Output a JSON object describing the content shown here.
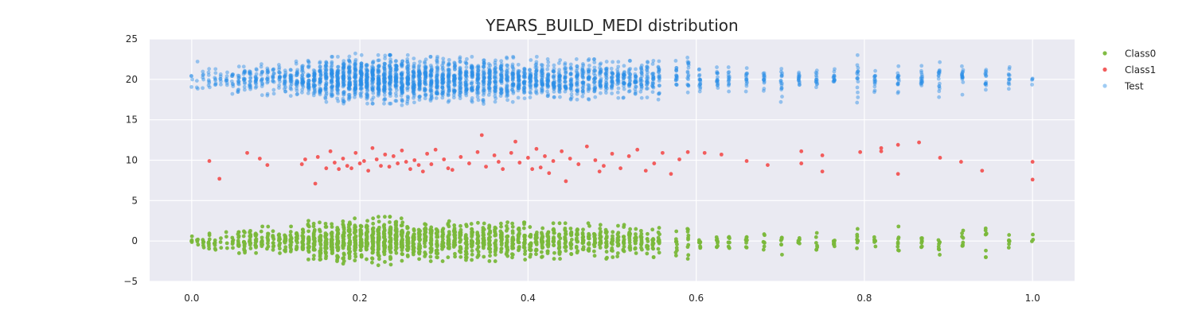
{
  "chart_data": {
    "type": "scatter",
    "title": "YEARS_BUILD_MEDI distribution",
    "xlabel": "",
    "ylabel": "",
    "xlim": [
      -0.05,
      1.05
    ],
    "ylim": [
      -5,
      25
    ],
    "x_ticks": [
      0.0,
      0.2,
      0.4,
      0.6,
      0.8,
      1.0
    ],
    "x_tick_labels": [
      "0.0",
      "0.2",
      "0.4",
      "0.6",
      "0.8",
      "1.0"
    ],
    "y_ticks": [
      -5,
      0,
      5,
      10,
      15,
      20,
      25
    ],
    "y_tick_labels": [
      "−5",
      "0",
      "5",
      "10",
      "15",
      "20",
      "25"
    ],
    "grid": true,
    "legend_position": "right",
    "background": "#eaeaf2",
    "series": [
      {
        "name": "Class0",
        "color": "#7ab83a",
        "opacity": 0.95,
        "center": 0,
        "x": [
          0.0,
          0.0069,
          0.0138,
          0.0208,
          0.0278,
          0.0347,
          0.0417,
          0.0486,
          0.0556,
          0.0625,
          0.0694,
          0.0764,
          0.0833,
          0.0903,
          0.0972,
          0.1042,
          0.1111,
          0.1181,
          0.125,
          0.1319,
          0.1389,
          0.1458,
          0.1528,
          0.1597,
          0.1667,
          0.1736,
          0.1806,
          0.1875,
          0.1944,
          0.2014,
          0.2083,
          0.2153,
          0.2222,
          0.2292,
          0.2361,
          0.2431,
          0.25,
          0.2569,
          0.2639,
          0.2708,
          0.2778,
          0.2847,
          0.2917,
          0.2986,
          0.3056,
          0.3125,
          0.3194,
          0.3264,
          0.3333,
          0.3403,
          0.3472,
          0.3542,
          0.3611,
          0.3681,
          0.375,
          0.3819,
          0.3889,
          0.3958,
          0.4028,
          0.4097,
          0.4167,
          0.4236,
          0.4306,
          0.4375,
          0.4444,
          0.4514,
          0.4583,
          0.4653,
          0.4722,
          0.4792,
          0.4861,
          0.4931,
          0.5,
          0.5069,
          0.5139,
          0.5208,
          0.5278,
          0.5347,
          0.5417,
          0.5486,
          0.5556,
          0.5764,
          0.5903,
          0.6042,
          0.625,
          0.6389,
          0.6597,
          0.6806,
          0.7014,
          0.7222,
          0.7431,
          0.7639,
          0.7917,
          0.8125,
          0.8403,
          0.8681,
          0.8889,
          0.9167,
          0.9444,
          0.9722,
          1.0
        ],
        "spread": [
          1.0,
          1.0,
          1.2,
          2.0,
          2.2,
          1.2,
          1.3,
          1.5,
          1.8,
          2.0,
          2.0,
          2.0,
          1.8,
          1.8,
          1.5,
          1.5,
          1.8,
          1.8,
          2.0,
          2.2,
          2.5,
          2.5,
          2.3,
          2.5,
          2.5,
          2.5,
          2.8,
          2.8,
          2.8,
          2.8,
          2.8,
          2.8,
          3.0,
          3.0,
          3.0,
          2.8,
          2.8,
          2.5,
          2.5,
          2.5,
          2.8,
          2.5,
          2.5,
          2.5,
          2.5,
          2.5,
          2.5,
          2.5,
          2.5,
          2.5,
          3.0,
          2.5,
          2.5,
          2.5,
          2.5,
          2.5,
          2.3,
          2.3,
          2.3,
          2.3,
          2.3,
          2.2,
          2.2,
          2.2,
          2.2,
          2.2,
          2.0,
          2.0,
          2.2,
          2.0,
          2.0,
          2.2,
          2.0,
          2.0,
          2.0,
          2.0,
          2.0,
          1.8,
          1.8,
          2.0,
          2.0,
          1.8,
          2.2,
          1.3,
          1.3,
          1.3,
          1.3,
          1.2,
          1.8,
          1.2,
          1.2,
          1.2,
          1.5,
          1.2,
          1.8,
          1.2,
          1.8,
          1.5,
          2.0,
          1.3,
          1.0
        ],
        "count": [
          5,
          4,
          6,
          8,
          7,
          3,
          4,
          6,
          12,
          14,
          14,
          14,
          12,
          10,
          12,
          12,
          14,
          16,
          18,
          20,
          24,
          26,
          26,
          30,
          32,
          34,
          36,
          38,
          38,
          40,
          40,
          40,
          40,
          38,
          36,
          36,
          34,
          32,
          30,
          30,
          28,
          28,
          26,
          26,
          26,
          26,
          24,
          24,
          24,
          24,
          24,
          24,
          22,
          22,
          22,
          22,
          20,
          20,
          20,
          20,
          20,
          18,
          18,
          18,
          18,
          18,
          16,
          16,
          16,
          16,
          16,
          16,
          14,
          14,
          14,
          14,
          14,
          14,
          12,
          12,
          12,
          10,
          10,
          8,
          8,
          8,
          8,
          7,
          8,
          7,
          7,
          7,
          8,
          7,
          8,
          8,
          8,
          8,
          8,
          6,
          3
        ]
      },
      {
        "name": "Class1",
        "color": "#f25c5c",
        "opacity": 1,
        "points": [
          [
            0.021,
            9.9
          ],
          [
            0.033,
            7.7
          ],
          [
            0.066,
            10.9
          ],
          [
            0.081,
            10.2
          ],
          [
            0.09,
            9.4
          ],
          [
            0.131,
            9.5
          ],
          [
            0.135,
            10.1
          ],
          [
            0.147,
            7.1
          ],
          [
            0.15,
            10.4
          ],
          [
            0.16,
            9.0
          ],
          [
            0.165,
            11.1
          ],
          [
            0.17,
            9.7
          ],
          [
            0.175,
            8.9
          ],
          [
            0.18,
            10.2
          ],
          [
            0.185,
            9.3
          ],
          [
            0.19,
            9.0
          ],
          [
            0.195,
            10.9
          ],
          [
            0.2,
            9.6
          ],
          [
            0.205,
            9.9
          ],
          [
            0.21,
            8.7
          ],
          [
            0.215,
            11.5
          ],
          [
            0.22,
            10.1
          ],
          [
            0.225,
            9.3
          ],
          [
            0.23,
            10.7
          ],
          [
            0.235,
            9.2
          ],
          [
            0.24,
            10.5
          ],
          [
            0.245,
            9.6
          ],
          [
            0.25,
            11.2
          ],
          [
            0.255,
            9.8
          ],
          [
            0.26,
            8.9
          ],
          [
            0.265,
            10.0
          ],
          [
            0.27,
            9.4
          ],
          [
            0.275,
            8.6
          ],
          [
            0.28,
            10.8
          ],
          [
            0.285,
            9.5
          ],
          [
            0.29,
            11.3
          ],
          [
            0.3,
            10.1
          ],
          [
            0.305,
            9.0
          ],
          [
            0.31,
            8.8
          ],
          [
            0.32,
            10.4
          ],
          [
            0.33,
            9.6
          ],
          [
            0.34,
            11.0
          ],
          [
            0.345,
            13.1
          ],
          [
            0.35,
            9.2
          ],
          [
            0.36,
            10.6
          ],
          [
            0.365,
            9.8
          ],
          [
            0.37,
            8.9
          ],
          [
            0.38,
            10.9
          ],
          [
            0.385,
            12.3
          ],
          [
            0.39,
            9.7
          ],
          [
            0.4,
            10.3
          ],
          [
            0.405,
            8.9
          ],
          [
            0.41,
            11.4
          ],
          [
            0.415,
            9.1
          ],
          [
            0.42,
            10.5
          ],
          [
            0.425,
            8.4
          ],
          [
            0.43,
            9.9
          ],
          [
            0.44,
            11.1
          ],
          [
            0.445,
            7.4
          ],
          [
            0.45,
            10.2
          ],
          [
            0.46,
            9.5
          ],
          [
            0.47,
            11.7
          ],
          [
            0.48,
            10.0
          ],
          [
            0.485,
            8.6
          ],
          [
            0.49,
            9.3
          ],
          [
            0.5,
            10.8
          ],
          [
            0.51,
            9.0
          ],
          [
            0.52,
            10.5
          ],
          [
            0.53,
            11.3
          ],
          [
            0.54,
            8.7
          ],
          [
            0.55,
            9.6
          ],
          [
            0.56,
            10.9
          ],
          [
            0.57,
            8.3
          ],
          [
            0.58,
            10.1
          ],
          [
            0.59,
            11.0
          ],
          [
            0.61,
            10.9
          ],
          [
            0.63,
            10.7
          ],
          [
            0.66,
            9.9
          ],
          [
            0.685,
            9.4
          ],
          [
            0.725,
            11.1
          ],
          [
            0.725,
            9.6
          ],
          [
            0.75,
            10.6
          ],
          [
            0.75,
            8.6
          ],
          [
            0.795,
            11.0
          ],
          [
            0.82,
            11.5
          ],
          [
            0.82,
            11.1
          ],
          [
            0.84,
            11.9
          ],
          [
            0.84,
            8.3
          ],
          [
            0.865,
            12.2
          ],
          [
            0.89,
            10.3
          ],
          [
            0.915,
            9.8
          ],
          [
            0.94,
            8.7
          ],
          [
            1.0,
            9.8
          ],
          [
            1.0,
            7.6
          ]
        ]
      },
      {
        "name": "Test",
        "color": "#2a8de6",
        "opacity": 0.45,
        "center": 20,
        "x": [
          0.0,
          0.0069,
          0.0138,
          0.0208,
          0.0278,
          0.0347,
          0.0417,
          0.0486,
          0.0556,
          0.0625,
          0.0694,
          0.0764,
          0.0833,
          0.0903,
          0.0972,
          0.1042,
          0.1111,
          0.1181,
          0.125,
          0.1319,
          0.1389,
          0.1458,
          0.1528,
          0.1597,
          0.1667,
          0.1736,
          0.1806,
          0.1875,
          0.1944,
          0.2014,
          0.2083,
          0.2153,
          0.2222,
          0.2292,
          0.2361,
          0.2431,
          0.25,
          0.2569,
          0.2639,
          0.2708,
          0.2778,
          0.2847,
          0.2917,
          0.2986,
          0.3056,
          0.3125,
          0.3194,
          0.3264,
          0.3333,
          0.3403,
          0.3472,
          0.3542,
          0.3611,
          0.3681,
          0.375,
          0.3819,
          0.3889,
          0.3958,
          0.4028,
          0.4097,
          0.4167,
          0.4236,
          0.4306,
          0.4375,
          0.4444,
          0.4514,
          0.4583,
          0.4653,
          0.4722,
          0.4792,
          0.4861,
          0.4931,
          0.5,
          0.5069,
          0.5139,
          0.5208,
          0.5278,
          0.5347,
          0.5417,
          0.5486,
          0.5556,
          0.5764,
          0.5903,
          0.6042,
          0.625,
          0.6389,
          0.6597,
          0.6806,
          0.7014,
          0.7222,
          0.7431,
          0.7639,
          0.7917,
          0.8125,
          0.8403,
          0.8681,
          0.8889,
          0.9167,
          0.9444,
          0.9722,
          1.0
        ],
        "spread": [
          1.0,
          2.2,
          1.5,
          1.5,
          1.8,
          1.5,
          1.5,
          1.8,
          2.0,
          2.0,
          2.0,
          1.8,
          2.0,
          2.0,
          1.8,
          1.8,
          2.0,
          2.2,
          2.3,
          2.3,
          2.5,
          2.5,
          2.5,
          2.8,
          2.8,
          2.8,
          3.0,
          3.2,
          3.2,
          3.0,
          3.0,
          3.0,
          3.0,
          3.0,
          3.0,
          3.0,
          3.2,
          3.0,
          3.0,
          3.0,
          3.0,
          2.8,
          2.8,
          2.8,
          2.8,
          2.8,
          2.8,
          2.8,
          2.8,
          2.8,
          3.2,
          2.8,
          2.8,
          2.8,
          2.8,
          2.8,
          2.5,
          2.5,
          2.5,
          2.8,
          2.8,
          2.5,
          2.5,
          2.5,
          2.5,
          2.5,
          2.5,
          2.5,
          2.5,
          2.5,
          2.3,
          2.3,
          2.3,
          2.3,
          2.3,
          2.3,
          2.3,
          2.3,
          2.3,
          2.3,
          2.5,
          2.3,
          3.5,
          1.5,
          1.5,
          1.5,
          1.5,
          1.5,
          2.8,
          1.5,
          1.5,
          1.5,
          3.2,
          1.8,
          2.0,
          1.8,
          2.2,
          2.0,
          2.2,
          2.3,
          1.0
        ],
        "count": [
          4,
          4,
          6,
          8,
          8,
          6,
          8,
          10,
          14,
          16,
          16,
          16,
          14,
          14,
          14,
          16,
          18,
          20,
          24,
          28,
          30,
          34,
          36,
          40,
          44,
          48,
          50,
          52,
          52,
          54,
          54,
          54,
          54,
          52,
          52,
          50,
          50,
          48,
          46,
          46,
          44,
          44,
          42,
          42,
          40,
          40,
          40,
          38,
          38,
          38,
          38,
          36,
          36,
          36,
          34,
          34,
          34,
          32,
          32,
          32,
          32,
          30,
          30,
          30,
          28,
          28,
          28,
          28,
          26,
          26,
          26,
          24,
          24,
          24,
          24,
          22,
          22,
          22,
          22,
          20,
          20,
          18,
          18,
          16,
          16,
          14,
          14,
          14,
          16,
          14,
          14,
          14,
          16,
          14,
          16,
          16,
          16,
          16,
          14,
          12,
          4
        ]
      }
    ]
  }
}
